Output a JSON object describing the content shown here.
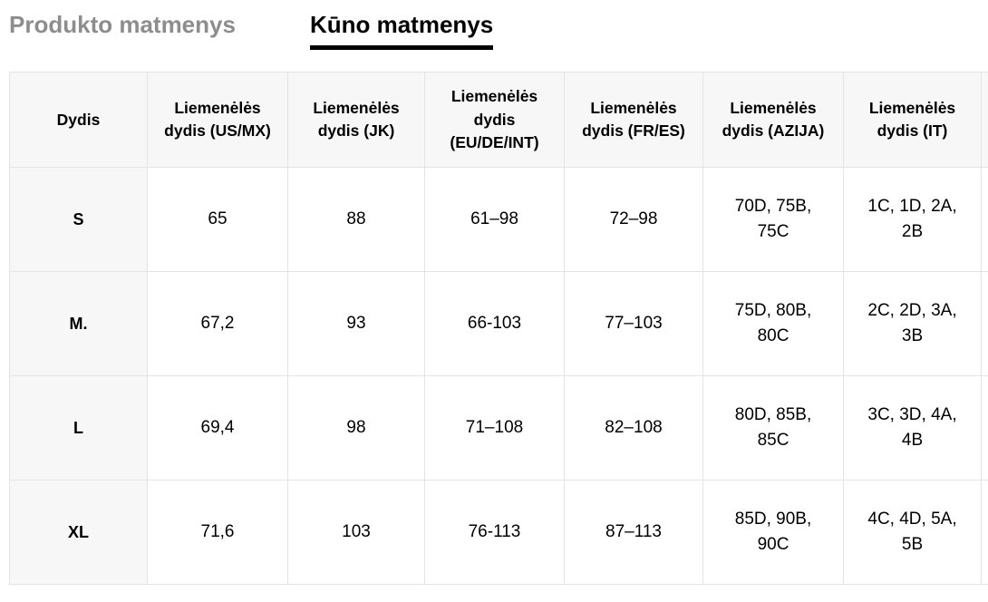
{
  "tabs": [
    {
      "label": "Produkto matmenys",
      "active": false
    },
    {
      "label": "Kūno matmenys",
      "active": true
    }
  ],
  "table": {
    "size_column_header": "Dydis",
    "columns": [
      "Liemenėlės dydis (US/MX)",
      "Liemenėlės dydis (JK)",
      "Liemenėlės dydis (EU/DE/INT)",
      "Liemenėlės dydis (FR/ES)",
      "Liemenėlės dydis (AZIJA)",
      "Liemenėlės dydis (IT)"
    ],
    "rows": [
      {
        "size": "S",
        "values": [
          "65",
          "88",
          "61–98",
          "72–98",
          "70D, 75B, 75C",
          "1C, 1D, 2A, 2B"
        ]
      },
      {
        "size": "M.",
        "values": [
          "67,2",
          "93",
          "66-103",
          "77–103",
          "75D, 80B, 80C",
          "2C, 2D, 3A, 3B"
        ]
      },
      {
        "size": "L",
        "values": [
          "69,4",
          "98",
          "71–108",
          "82–108",
          "80D, 85B, 85C",
          "3C, 3D, 4A, 4B"
        ]
      },
      {
        "size": "XL",
        "values": [
          "71,6",
          "103",
          "76-113",
          "87–113",
          "85D, 90B, 90C",
          "4C, 4D, 5A, 5B"
        ]
      }
    ]
  },
  "colors": {
    "tab_inactive": "#8d8d8d",
    "tab_active": "#000000",
    "header_bg": "#f7f7f7",
    "border": "#e4e4e4"
  }
}
